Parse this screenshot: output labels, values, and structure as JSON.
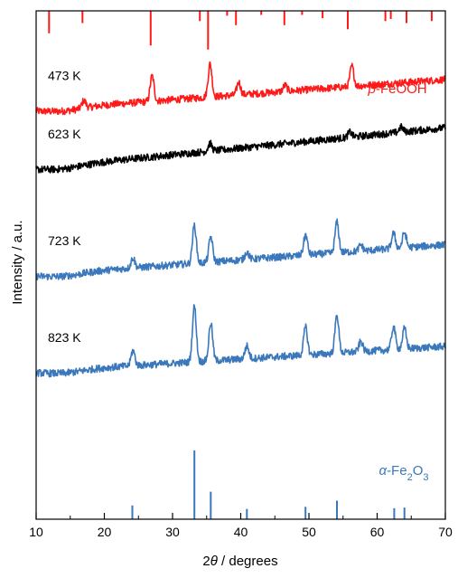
{
  "chart_data": {
    "type": "line",
    "title": "",
    "xlabel_parts": [
      "2",
      "θ",
      " / degrees"
    ],
    "ylabel": "Intensity / a.u.",
    "xlim": [
      10,
      70
    ],
    "x_ticks": [
      10,
      20,
      30,
      40,
      50,
      60,
      70
    ],
    "grid": false,
    "legend": "none",
    "series": [
      {
        "name": "473 K",
        "color": "#ff1a1a",
        "baseline_start": 0.805,
        "baseline_end": 0.865,
        "peaks": [
          {
            "x": 17.0,
            "height": 0.015
          },
          {
            "x": 27.0,
            "height": 0.05
          },
          {
            "x": 35.5,
            "height": 0.065
          },
          {
            "x": 39.7,
            "height": 0.025
          },
          {
            "x": 46.5,
            "height": 0.012
          },
          {
            "x": 56.3,
            "height": 0.04
          }
        ]
      },
      {
        "name": "623 K",
        "color": "#000000",
        "baseline_start": 0.69,
        "baseline_end": 0.77,
        "peaks": [
          {
            "x": 35.5,
            "height": 0.015
          },
          {
            "x": 56.0,
            "height": 0.01
          },
          {
            "x": 63.5,
            "height": 0.01
          }
        ]
      },
      {
        "name": "723 K",
        "color": "#3a78bb",
        "baseline_start": 0.48,
        "baseline_end": 0.54,
        "peaks": [
          {
            "x": 24.2,
            "height": 0.02
          },
          {
            "x": 33.2,
            "height": 0.075
          },
          {
            "x": 35.6,
            "height": 0.05
          },
          {
            "x": 40.9,
            "height": 0.015
          },
          {
            "x": 49.5,
            "height": 0.04
          },
          {
            "x": 54.1,
            "height": 0.06
          },
          {
            "x": 57.6,
            "height": 0.012
          },
          {
            "x": 62.4,
            "height": 0.03
          },
          {
            "x": 64.0,
            "height": 0.03
          }
        ]
      },
      {
        "name": "823 K",
        "color": "#3a78bb",
        "baseline_start": 0.29,
        "baseline_end": 0.34,
        "peaks": [
          {
            "x": 24.2,
            "height": 0.03
          },
          {
            "x": 33.2,
            "height": 0.11
          },
          {
            "x": 35.6,
            "height": 0.075
          },
          {
            "x": 40.9,
            "height": 0.025
          },
          {
            "x": 49.5,
            "height": 0.055
          },
          {
            "x": 54.1,
            "height": 0.075
          },
          {
            "x": 57.6,
            "height": 0.02
          },
          {
            "x": 62.4,
            "height": 0.045
          },
          {
            "x": 64.0,
            "height": 0.04
          }
        ]
      }
    ],
    "reference_patterns": [
      {
        "name": "β-FeOOH",
        "label_parts": [
          "β",
          "-FeOOH"
        ],
        "color": "#ff1a1a",
        "sticks": [
          {
            "x": 11.9,
            "intensity": 0.55
          },
          {
            "x": 16.8,
            "intensity": 0.3
          },
          {
            "x": 26.8,
            "intensity": 0.85
          },
          {
            "x": 34.0,
            "intensity": 0.25
          },
          {
            "x": 35.2,
            "intensity": 0.95
          },
          {
            "x": 38.0,
            "intensity": 0.12
          },
          {
            "x": 39.3,
            "intensity": 0.35
          },
          {
            "x": 43.0,
            "intensity": 0.1
          },
          {
            "x": 46.4,
            "intensity": 0.35
          },
          {
            "x": 49.0,
            "intensity": 0.1
          },
          {
            "x": 52.0,
            "intensity": 0.18
          },
          {
            "x": 55.7,
            "intensity": 0.45
          },
          {
            "x": 61.2,
            "intensity": 0.25
          },
          {
            "x": 62.0,
            "intensity": 0.2
          },
          {
            "x": 64.3,
            "intensity": 0.3
          },
          {
            "x": 68.0,
            "intensity": 0.25
          }
        ]
      },
      {
        "name": "α-Fe2O3",
        "label_parts": [
          "α",
          "-Fe",
          "2",
          "O",
          "3"
        ],
        "color": "#3a78bb",
        "sticks": [
          {
            "x": 24.1,
            "intensity": 0.2
          },
          {
            "x": 33.2,
            "intensity": 1.0
          },
          {
            "x": 35.6,
            "intensity": 0.4
          },
          {
            "x": 40.9,
            "intensity": 0.15
          },
          {
            "x": 49.5,
            "intensity": 0.18
          },
          {
            "x": 54.1,
            "intensity": 0.27
          },
          {
            "x": 62.5,
            "intensity": 0.16
          },
          {
            "x": 64.0,
            "intensity": 0.17
          }
        ]
      }
    ]
  }
}
